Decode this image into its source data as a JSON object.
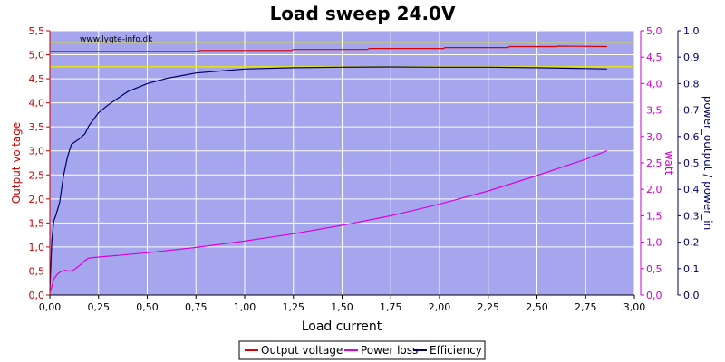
{
  "chart_data": {
    "type": "line",
    "title": "Load sweep 24.0V",
    "watermark": "www.lygte-info.dk",
    "xlabel": "Load current",
    "ylabel_left": "Output voltage",
    "ylabel_right1": "watt",
    "ylabel_right2": "power_output / power_in",
    "xlim": [
      0,
      3.0
    ],
    "ylim_left": [
      0,
      5.5
    ],
    "ylim_right1": [
      0,
      5.0
    ],
    "ylim_right2": [
      0,
      1.0
    ],
    "x_ticks": [
      "0,00",
      "0,25",
      "0,50",
      "0,75",
      "1,00",
      "1,25",
      "1,50",
      "1,75",
      "2,00",
      "2,25",
      "2,50",
      "2,75",
      "3,00"
    ],
    "y_left_ticks": [
      "0,0",
      "0,5",
      "1,0",
      "1,5",
      "2,0",
      "2,5",
      "3,0",
      "3,5",
      "4,0",
      "4,5",
      "5,0",
      "5,5"
    ],
    "y_right1_ticks": [
      "0,0",
      "0,5",
      "1,0",
      "1,5",
      "2,0",
      "2,5",
      "3,0",
      "3,5",
      "4,0",
      "4,5",
      "5,0"
    ],
    "y_right2_ticks": [
      "0,0",
      "0,1",
      "0,2",
      "0,3",
      "0,4",
      "0,5",
      "0,6",
      "0,7",
      "0,8",
      "0,9",
      "1,0"
    ],
    "grid": true,
    "legend_placement": "bottom-center",
    "reference_lines_left_axis": [
      5.25,
      4.75
    ],
    "colors": {
      "plot_bg": "#a5a6ee",
      "grid": "#ffffff",
      "voltage": "#dd0000",
      "power_loss": "#dd00dd",
      "efficiency": "#000066",
      "ref_line": "#e8e800",
      "left_axis": "#cc0000",
      "right1_axis": "#cc00cc",
      "right2_axis": "#000066"
    },
    "series": [
      {
        "name": "Output voltage",
        "axis": "left",
        "color": "#dd0000",
        "x": [
          0.0,
          0.1,
          0.25,
          0.5,
          0.76,
          0.77,
          1.0,
          1.24,
          1.25,
          1.5,
          1.63,
          1.64,
          2.0,
          2.02,
          2.03,
          2.35,
          2.36,
          2.6,
          2.61,
          2.86
        ],
        "y": [
          5.07,
          5.07,
          5.07,
          5.07,
          5.07,
          5.09,
          5.09,
          5.09,
          5.11,
          5.11,
          5.11,
          5.13,
          5.13,
          5.13,
          5.15,
          5.15,
          5.17,
          5.17,
          5.18,
          5.17
        ]
      },
      {
        "name": "Power loss",
        "axis": "right1",
        "color": "#dd00dd",
        "x": [
          0.0,
          0.01,
          0.02,
          0.04,
          0.06,
          0.08,
          0.1,
          0.12,
          0.15,
          0.18,
          0.2,
          0.25,
          0.35,
          0.5,
          0.75,
          1.0,
          1.25,
          1.5,
          1.75,
          2.0,
          2.25,
          2.5,
          2.75,
          2.86
        ],
        "y": [
          0.05,
          0.15,
          0.3,
          0.4,
          0.45,
          0.47,
          0.45,
          0.47,
          0.55,
          0.65,
          0.7,
          0.72,
          0.75,
          0.8,
          0.9,
          1.02,
          1.16,
          1.32,
          1.5,
          1.72,
          1.97,
          2.26,
          2.57,
          2.73
        ]
      },
      {
        "name": "Efficiency",
        "axis": "right2",
        "color": "#000066",
        "x": [
          0.0,
          0.01,
          0.02,
          0.03,
          0.05,
          0.07,
          0.09,
          0.11,
          0.13,
          0.15,
          0.18,
          0.2,
          0.25,
          0.3,
          0.4,
          0.5,
          0.6,
          0.75,
          1.0,
          1.25,
          1.5,
          1.75,
          2.0,
          2.25,
          2.5,
          2.75,
          2.86
        ],
        "y": [
          0.02,
          0.2,
          0.28,
          0.3,
          0.35,
          0.45,
          0.52,
          0.57,
          0.58,
          0.59,
          0.61,
          0.64,
          0.69,
          0.72,
          0.77,
          0.8,
          0.82,
          0.84,
          0.855,
          0.86,
          0.862,
          0.863,
          0.862,
          0.862,
          0.86,
          0.857,
          0.855
        ]
      }
    ]
  }
}
